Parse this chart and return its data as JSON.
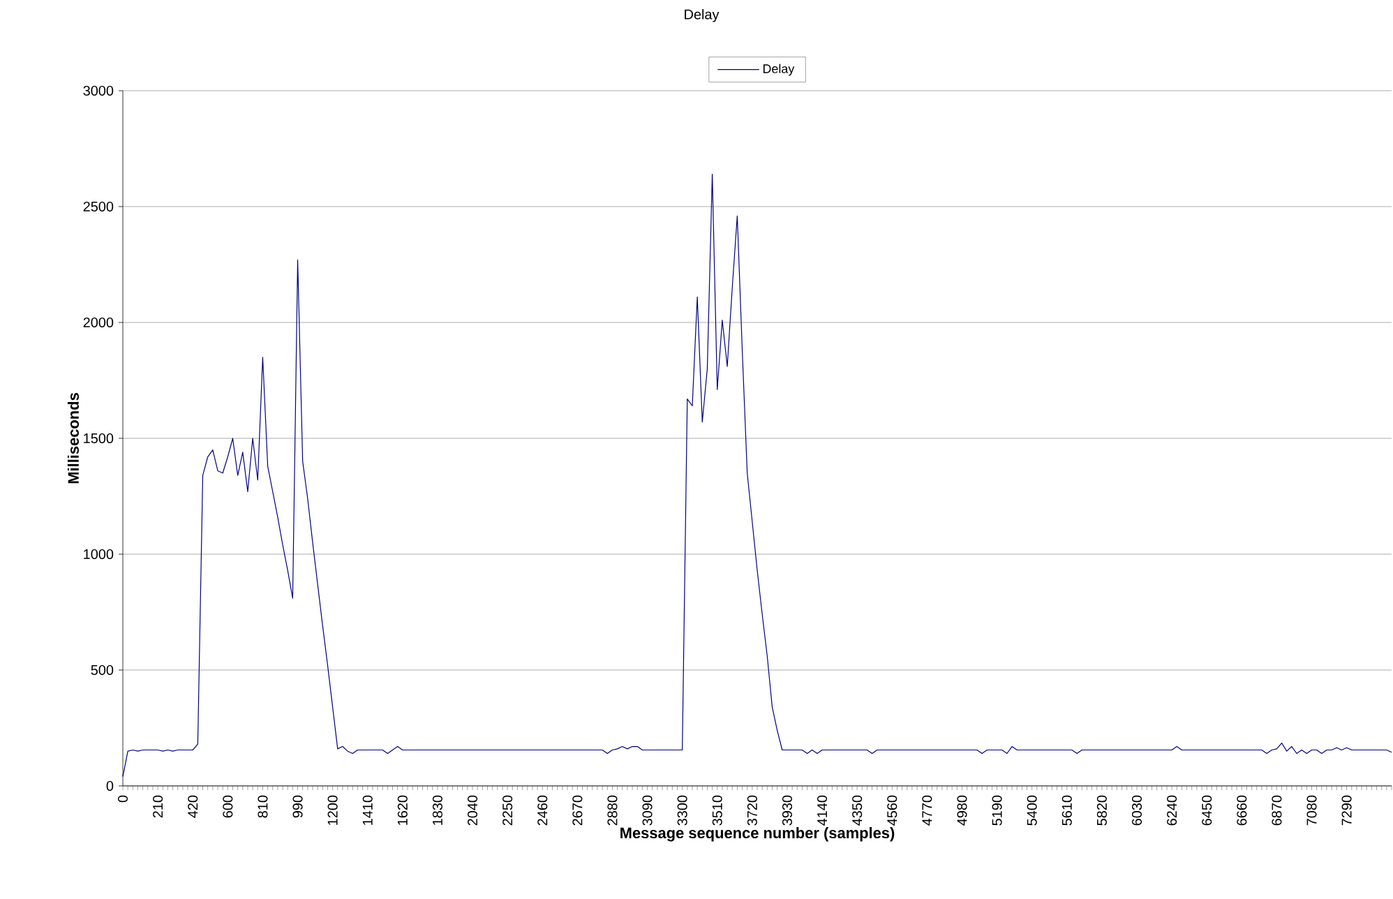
{
  "chart_data": {
    "type": "line",
    "title": "Delay",
    "xlabel": "Message sequence number (samples)",
    "ylabel": "Milliseconds",
    "categories": [
      "0",
      null,
      null,
      null,
      null,
      null,
      null,
      "210",
      null,
      null,
      null,
      null,
      null,
      null,
      "420",
      null,
      null,
      null,
      null,
      null,
      null,
      "600",
      null,
      null,
      null,
      null,
      null,
      null,
      "810",
      null,
      null,
      null,
      null,
      null,
      null,
      "990",
      null,
      null,
      null,
      null,
      null,
      null,
      "1200",
      null,
      null,
      null,
      null,
      null,
      null,
      "1410",
      null,
      null,
      null,
      null,
      null,
      null,
      "1620",
      null,
      null,
      null,
      null,
      null,
      null,
      "1830",
      null,
      null,
      null,
      null,
      null,
      null,
      "2040",
      null,
      null,
      null,
      null,
      null,
      null,
      "2250",
      null,
      null,
      null,
      null,
      null,
      null,
      "2460",
      null,
      null,
      null,
      null,
      null,
      null,
      "2670",
      null,
      null,
      null,
      null,
      null,
      null,
      "2880",
      null,
      null,
      null,
      null,
      null,
      null,
      "3090",
      null,
      null,
      null,
      null,
      null,
      null,
      "3300",
      null,
      null,
      null,
      null,
      null,
      null,
      "3510",
      null,
      null,
      null,
      null,
      null,
      null,
      "3720",
      null,
      null,
      null,
      null,
      null,
      null,
      "3930",
      null,
      null,
      null,
      null,
      null,
      null,
      "4140",
      null,
      null,
      null,
      null,
      null,
      null,
      "4350",
      null,
      null,
      null,
      null,
      null,
      null,
      "4560",
      null,
      null,
      null,
      null,
      null,
      null,
      "4770",
      null,
      null,
      null,
      null,
      null,
      null,
      "4980",
      null,
      null,
      null,
      null,
      null,
      null,
      "5190",
      null,
      null,
      null,
      null,
      null,
      null,
      "5400",
      null,
      null,
      null,
      null,
      null,
      null,
      "5610",
      null,
      null,
      null,
      null,
      null,
      null,
      "5820",
      null,
      null,
      null,
      null,
      null,
      null,
      "6030",
      null,
      null,
      null,
      null,
      null,
      null,
      "6240",
      null,
      null,
      null,
      null,
      null,
      null,
      "6450",
      null,
      null,
      null,
      null,
      null,
      null,
      "6660",
      null,
      null,
      null,
      null,
      null,
      null,
      "6870",
      null,
      null,
      null,
      null,
      null,
      null,
      "7080",
      null,
      null,
      null,
      null,
      null,
      null,
      "7290",
      null,
      null,
      null,
      null,
      null,
      null,
      null,
      null,
      null
    ],
    "series": [
      {
        "name": "Delay",
        "color": "#000080",
        "values": [
          40,
          150,
          155,
          150,
          155,
          155,
          155,
          155,
          150,
          155,
          150,
          155,
          155,
          155,
          155,
          180,
          1340,
          1420,
          1450,
          1360,
          1350,
          1420,
          1500,
          1340,
          1440,
          1270,
          1500,
          1320,
          1850,
          1380,
          1270,
          1160,
          1040,
          930,
          810,
          2270,
          1400,
          1240,
          1050,
          870,
          690,
          520,
          340,
          160,
          170,
          150,
          140,
          155,
          155,
          155,
          155,
          155,
          155,
          140,
          155,
          170,
          155,
          155,
          155,
          155,
          155,
          155,
          155,
          155,
          155,
          155,
          155,
          155,
          155,
          155,
          155,
          155,
          155,
          155,
          155,
          155,
          155,
          155,
          155,
          155,
          155,
          155,
          155,
          155,
          155,
          155,
          155,
          155,
          155,
          155,
          155,
          155,
          155,
          155,
          155,
          155,
          155,
          140,
          155,
          160,
          170,
          160,
          170,
          170,
          155,
          155,
          155,
          155,
          155,
          155,
          155,
          155,
          155,
          1670,
          1640,
          2110,
          1570,
          1800,
          2640,
          1710,
          2010,
          1810,
          2150,
          2460,
          1880,
          1350,
          1140,
          930,
          740,
          560,
          340,
          240,
          155,
          155,
          155,
          155,
          155,
          140,
          155,
          140,
          155,
          155,
          155,
          155,
          155,
          155,
          155,
          155,
          155,
          155,
          140,
          155,
          155,
          155,
          155,
          155,
          155,
          155,
          155,
          155,
          155,
          155,
          155,
          155,
          155,
          155,
          155,
          155,
          155,
          155,
          155,
          155,
          140,
          155,
          155,
          155,
          155,
          140,
          170,
          155,
          155,
          155,
          155,
          155,
          155,
          155,
          155,
          155,
          155,
          155,
          155,
          140,
          155,
          155,
          155,
          155,
          155,
          155,
          155,
          155,
          155,
          155,
          155,
          155,
          155,
          155,
          155,
          155,
          155,
          155,
          155,
          170,
          155,
          155,
          155,
          155,
          155,
          155,
          155,
          155,
          155,
          155,
          155,
          155,
          155,
          155,
          155,
          155,
          155,
          140,
          155,
          160,
          185,
          150,
          170,
          140,
          155,
          140,
          155,
          155,
          140,
          155,
          155,
          165,
          155,
          165,
          155,
          155,
          155,
          155,
          155,
          155,
          155,
          155,
          145
        ]
      }
    ],
    "ylim": [
      0,
      3000
    ],
    "yticks": [
      0,
      500,
      1000,
      1500,
      2000,
      2500,
      3000
    ],
    "grid": "y",
    "legend": "top",
    "marker": "none",
    "line_style": "solid"
  }
}
